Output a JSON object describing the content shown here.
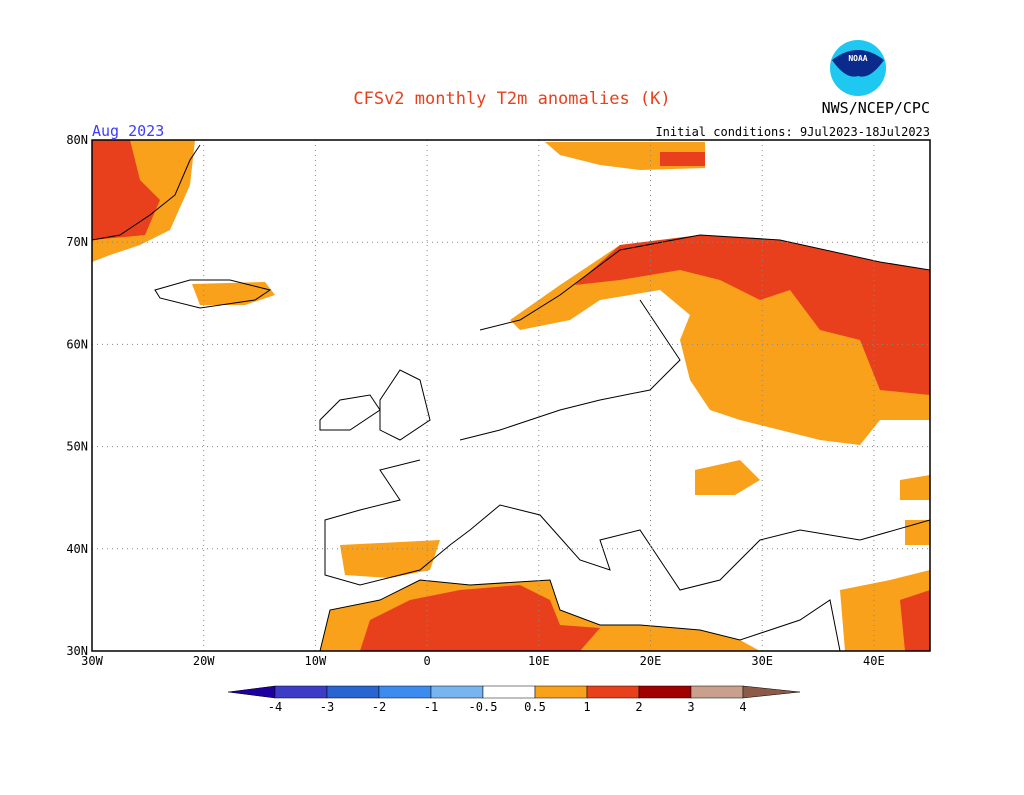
{
  "header": {
    "title": "CFSv2 monthly T2m anomalies (K)",
    "agency": "NWS/NCEP/CPC",
    "logo_text": "NOAA",
    "period": "Aug 2023",
    "initial_conditions": "Initial conditions: 9Jul2023-18Jul2023"
  },
  "map": {
    "lon_labels": [
      "30W",
      "20W",
      "10W",
      "0",
      "10E",
      "20E",
      "30E",
      "40E"
    ],
    "lat_labels": [
      "30N",
      "40N",
      "50N",
      "60N",
      "70N",
      "80N"
    ]
  },
  "colorbar": {
    "colors": [
      "#1e00a0",
      "#3c3cc8",
      "#2864d2",
      "#3c8cf0",
      "#78b4f0",
      "#ffffff",
      "#f9a11b",
      "#e8401c",
      "#a00000",
      "#c8a08c",
      "#8c5a46"
    ],
    "labels": [
      -4,
      -3,
      -2,
      -1,
      -0.5,
      0.5,
      1,
      2,
      3,
      4
    ]
  }
}
